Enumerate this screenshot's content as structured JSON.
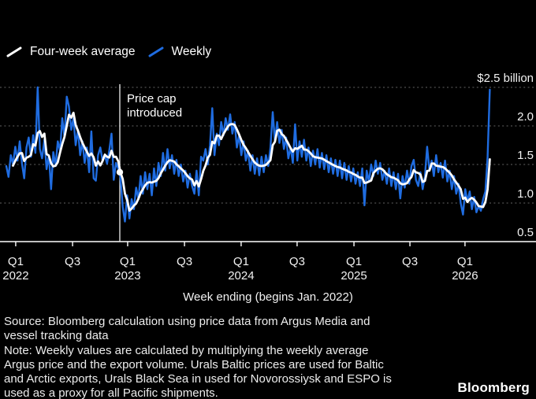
{
  "legend": {
    "average": {
      "label": "Four-week average",
      "color": "#ffffff"
    },
    "weekly": {
      "label": "Weekly",
      "color": "#1f6ce0"
    }
  },
  "annotation": {
    "text_line1": "Price cap",
    "text_line2": "introduced",
    "week_index": 50.7
  },
  "x_axis_title": "Week ending (begins Jan. 2022)",
  "footer_lines": [
    "Source: Bloomberg calculation using price data from Argus Media and",
    "vessel tracking data",
    "Note: Weekly values are calculated by multiplying the weekly average",
    "Argus price and the export volume. Urals Baltic prices are used for Baltic",
    "and Arctic exports, Urals Black Sea in used for Novorossiysk and ESPO is",
    "used as a proxy for all Pacific shipments."
  ],
  "logo_text": "Bloomberg",
  "chart_data": {
    "type": "line",
    "x_label": "Week ending (begins Jan. 2022)",
    "x_unit": "weeks since early Jan. 2022",
    "ylim": [
      0.5,
      2.55
    ],
    "grid": "horizontal dotted",
    "legend_position": "top-left",
    "y_ticks": [
      {
        "value": 0.5,
        "label": "0.5"
      },
      {
        "value": 1.0,
        "label": "1.0"
      },
      {
        "value": 1.5,
        "label": "1.5"
      },
      {
        "value": 2.0,
        "label": "2.0"
      },
      {
        "value": 2.5,
        "label": "$2.5 billion"
      }
    ],
    "x_ticks": [
      {
        "label": "Q1",
        "year": "2022",
        "week_index": 4.2
      },
      {
        "label": "Q3",
        "week_index": 29.6
      },
      {
        "label": "Q1",
        "year": "2023",
        "week_index": 54.2
      },
      {
        "label": "Q3",
        "week_index": 79.6
      },
      {
        "label": "Q1",
        "year": "2024",
        "week_index": 104.9
      },
      {
        "label": "Q3",
        "week_index": 129.9
      },
      {
        "label": "Q1",
        "year": "2025",
        "week_index": 155.3
      },
      {
        "label": "Q3",
        "week_index": 180.3
      },
      {
        "label": "Q1",
        "year": "2026",
        "week_index": 204.9
      }
    ],
    "annotations": [
      {
        "label": "Price cap introduced",
        "week_index": 50.7
      }
    ],
    "series": [
      {
        "name": "Weekly",
        "color": "#1f6ce0",
        "values": [
          1.48,
          1.34,
          1.62,
          1.5,
          1.73,
          1.55,
          1.8,
          1.51,
          1.32,
          1.72,
          1.85,
          1.6,
          1.88,
          1.65,
          2.5,
          1.7,
          1.58,
          1.82,
          1.44,
          1.62,
          1.18,
          1.66,
          1.48,
          1.8,
          1.68,
          2.1,
          1.85,
          2.38,
          2.25,
          1.95,
          2.1,
          1.75,
          1.95,
          1.62,
          1.8,
          1.52,
          1.72,
          1.4,
          1.93,
          1.32,
          1.29,
          1.62,
          1.72,
          1.55,
          1.62,
          1.51,
          1.68,
          1.9,
          1.3,
          1.52,
          1.45,
          1.33,
          0.95,
          0.76,
          1.1,
          0.8,
          1.05,
          0.92,
          1.2,
          1.05,
          1.35,
          1.12,
          1.4,
          1.18,
          1.38,
          1.1,
          1.45,
          1.22,
          1.52,
          1.35,
          1.65,
          1.42,
          1.7,
          1.45,
          1.62,
          1.38,
          1.56,
          1.35,
          1.5,
          1.28,
          1.42,
          1.2,
          1.38,
          1.22,
          1.12,
          1.42,
          1.1,
          1.6,
          1.55,
          1.7,
          1.5,
          1.75,
          2.23,
          1.62,
          1.9,
          1.75,
          2.05,
          1.88,
          2.1,
          1.95,
          2.15,
          1.9,
          2.05,
          1.72,
          1.88,
          1.62,
          1.8,
          1.55,
          1.68,
          1.42,
          1.62,
          1.38,
          1.58,
          1.36,
          1.6,
          1.4,
          1.62,
          1.48,
          1.72,
          2.18,
          1.8,
          2.05,
          1.78,
          1.95,
          1.7,
          1.85,
          1.58,
          1.72,
          1.52,
          2.02,
          1.55,
          1.8,
          1.6,
          1.82,
          1.55,
          1.72,
          1.48,
          1.68,
          1.5,
          1.7,
          1.46,
          1.65,
          1.44,
          1.62,
          1.4,
          1.58,
          1.38,
          1.56,
          1.35,
          1.55,
          1.32,
          1.52,
          1.3,
          1.48,
          1.28,
          1.45,
          1.25,
          1.4,
          1.22,
          1.45,
          0.97,
          1.42,
          1.28,
          1.5,
          1.35,
          1.55,
          1.38,
          1.52,
          1.3,
          1.42,
          1.25,
          1.45,
          1.22,
          1.4,
          1.18,
          1.38,
          1.06,
          1.35,
          1.2,
          1.42,
          1.25,
          1.48,
          1.56,
          1.3,
          1.22,
          1.4,
          1.18,
          1.35,
          1.73,
          1.42,
          1.55,
          1.35,
          1.62,
          1.4,
          1.52,
          1.33,
          1.55,
          1.28,
          1.42,
          1.18,
          1.35,
          1.12,
          1.25,
          1.0,
          0.85,
          1.18,
          1.02,
          1.15,
          0.92,
          1.08,
          0.88,
          0.96,
          0.9,
          1.05,
          1.15,
          1.6,
          2.47
        ]
      },
      {
        "name": "Four-week average",
        "color": "#ffffff",
        "derived_from": "trailing 4-week mean of Weekly values"
      }
    ]
  }
}
